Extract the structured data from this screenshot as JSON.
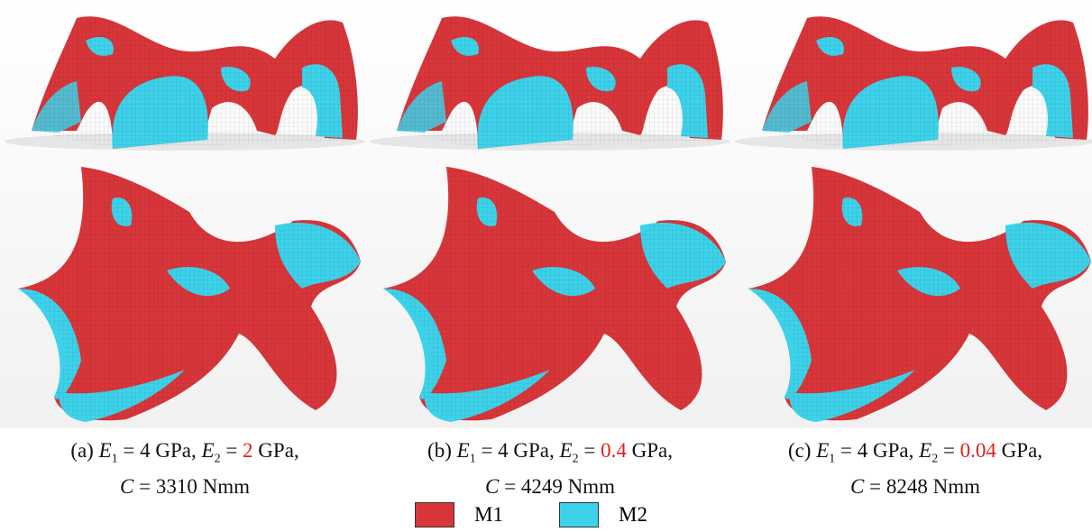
{
  "panels": [
    {
      "label": "(a)",
      "e1_symbol": "E",
      "e1_sub": "1",
      "e1_text": "= 4 GPa,",
      "e2_symbol": "E",
      "e2_sub": "2",
      "e2_eq": "=",
      "e2_value": "2",
      "e2_unit": "GPa,",
      "c_symbol": "C",
      "c_text": "= 3310 Nmm"
    },
    {
      "label": "(b)",
      "e1_symbol": "E",
      "e1_sub": "1",
      "e1_text": "= 4 GPa,",
      "e2_symbol": "E",
      "e2_sub": "2",
      "e2_eq": "=",
      "e2_value": "0.4",
      "e2_unit": "GPa,",
      "c_symbol": "C",
      "c_text": "= 4249 Nmm"
    },
    {
      "label": "(c)",
      "e1_symbol": "E",
      "e1_sub": "1",
      "e1_text": "= 4 GPa,",
      "e2_symbol": "E",
      "e2_sub": "2",
      "e2_eq": "=",
      "e2_value": "0.04",
      "e2_unit": "GPa,",
      "c_symbol": "C",
      "c_text": "= 8248 Nmm"
    }
  ],
  "legend": [
    {
      "name": "M1",
      "color": "#d8363a"
    },
    {
      "name": "M2",
      "color": "#3dd2ea"
    }
  ]
}
